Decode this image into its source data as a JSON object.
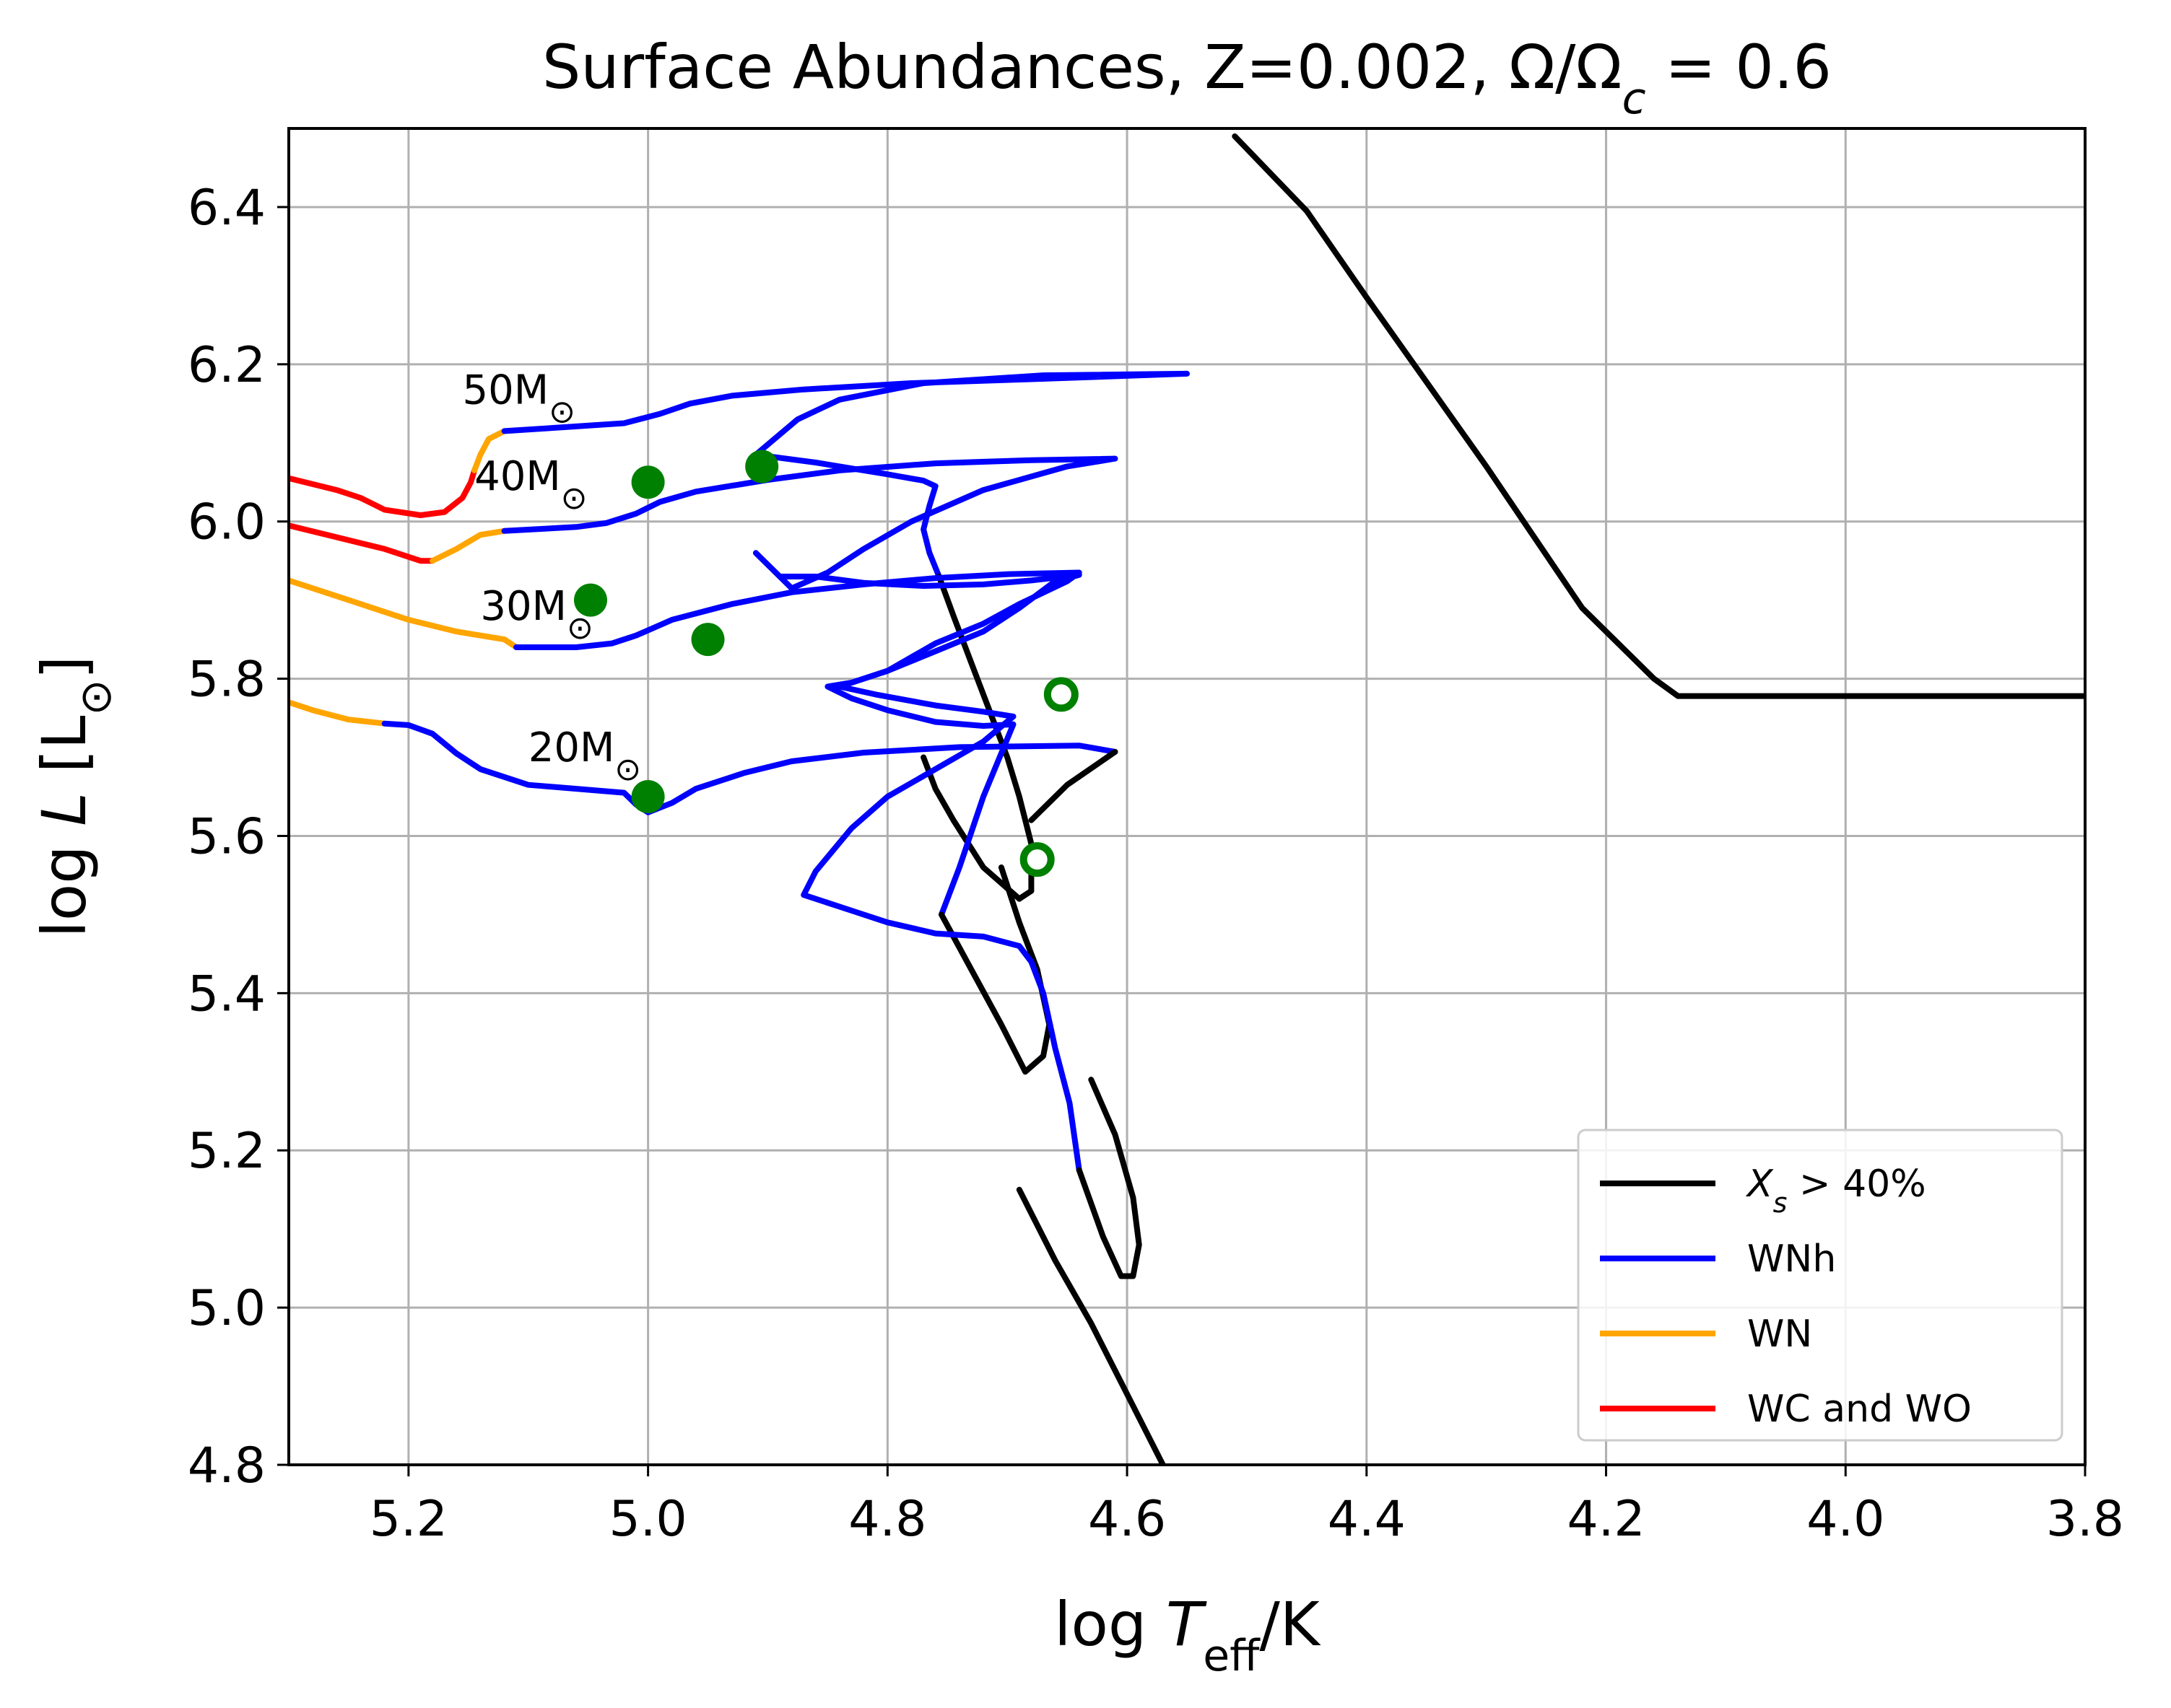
{
  "chart_data": {
    "type": "line",
    "title": "Surface Abundances, Z=0.002, Ω/Ω",
    "title_subscript": "c",
    "title_suffix": " = 0.6",
    "xlabel_prefix": "log ",
    "xlabel_var": "T",
    "xlabel_sub": "eff",
    "xlabel_suffix": "/K",
    "ylabel_prefix": "log ",
    "ylabel_var": "L",
    "ylabel_unit": " [L",
    "ylabel_unit_sym": "⊙",
    "ylabel_close": "]",
    "xlim": [
      5.3,
      3.8
    ],
    "ylim": [
      4.8,
      6.5
    ],
    "x_inverted": true,
    "grid": true,
    "legend_position": "bottom-right",
    "xticks": [
      "5.2",
      "5.0",
      "4.8",
      "4.6",
      "4.4",
      "4.2",
      "4.0",
      "3.8"
    ],
    "yticks": [
      "4.8",
      "5.0",
      "5.2",
      "5.4",
      "5.6",
      "5.8",
      "6.0",
      "6.2",
      "6.4"
    ],
    "colors": {
      "black": "#000000",
      "blue": "#0000ff",
      "orange": "#ffa500",
      "red": "#ff0000",
      "green": "#008000"
    },
    "legend": [
      {
        "label": "X",
        "label_sub": "s",
        "label_suffix": " > 40%",
        "color": "#000000"
      },
      {
        "label": "WNh",
        "color": "#0000ff"
      },
      {
        "label": "WN",
        "color": "#ffa500"
      },
      {
        "label": "WC and WO",
        "color": "#ff0000"
      }
    ],
    "track_labels": [
      {
        "text": "50M",
        "sym": "⊙",
        "x": 5.155,
        "y": 6.15
      },
      {
        "text": "40M",
        "sym": "⊙",
        "x": 5.145,
        "y": 6.04
      },
      {
        "text": "30M",
        "sym": "⊙",
        "x": 5.14,
        "y": 5.875
      },
      {
        "text": "20M",
        "sym": "⊙",
        "x": 5.1,
        "y": 5.695
      }
    ],
    "tracks": [
      {
        "name": "50M",
        "segments": [
          {
            "color": "#ff0000",
            "points": [
              [
                5.3,
                6.055
              ],
              [
                5.26,
                6.04
              ],
              [
                5.24,
                6.03
              ],
              [
                5.22,
                6.015
              ],
              [
                5.19,
                6.008
              ],
              [
                5.17,
                6.012
              ],
              [
                5.155,
                6.03
              ],
              [
                5.148,
                6.05
              ],
              [
                5.145,
                6.065
              ]
            ]
          },
          {
            "color": "#ffa500",
            "points": [
              [
                5.145,
                6.065
              ],
              [
                5.14,
                6.085
              ],
              [
                5.133,
                6.105
              ],
              [
                5.12,
                6.115
              ]
            ]
          },
          {
            "color": "#0000ff",
            "points": [
              [
                5.12,
                6.115
              ],
              [
                5.07,
                6.12
              ],
              [
                5.02,
                6.125
              ],
              [
                4.99,
                6.137
              ],
              [
                4.965,
                6.15
              ],
              [
                4.93,
                6.16
              ],
              [
                4.87,
                6.168
              ],
              [
                4.78,
                6.176
              ],
              [
                4.68,
                6.181
              ],
              [
                4.55,
                6.188
              ],
              [
                4.67,
                6.186
              ],
              [
                4.77,
                6.176
              ],
              [
                4.84,
                6.155
              ],
              [
                4.875,
                6.13
              ],
              [
                4.91,
                6.085
              ],
              [
                4.86,
                6.075
              ],
              [
                4.8,
                6.06
              ],
              [
                4.77,
                6.052
              ],
              [
                4.76,
                6.045
              ],
              [
                4.765,
                6.02
              ],
              [
                4.77,
                5.99
              ],
              [
                4.765,
                5.96
              ],
              [
                4.757,
                5.93
              ]
            ]
          },
          {
            "color": "#000000",
            "points": [
              [
                4.757,
                5.93
              ],
              [
                4.745,
                5.88
              ],
              [
                4.73,
                5.82
              ],
              [
                4.715,
                5.76
              ],
              [
                4.7,
                5.7
              ],
              [
                4.69,
                5.65
              ],
              [
                4.68,
                5.59
              ],
              [
                4.68,
                5.53
              ],
              [
                4.69,
                5.52
              ],
              [
                4.72,
                5.56
              ],
              [
                4.745,
                5.62
              ],
              [
                4.76,
                5.66
              ],
              [
                4.77,
                5.7
              ]
            ]
          }
        ]
      },
      {
        "name": "40M",
        "segments": [
          {
            "color": "#ff0000",
            "points": [
              [
                5.3,
                5.995
              ],
              [
                5.26,
                5.98
              ],
              [
                5.22,
                5.965
              ],
              [
                5.19,
                5.95
              ],
              [
                5.18,
                5.95
              ]
            ]
          },
          {
            "color": "#ffa500",
            "points": [
              [
                5.18,
                5.95
              ],
              [
                5.16,
                5.965
              ],
              [
                5.14,
                5.983
              ],
              [
                5.12,
                5.988
              ]
            ]
          },
          {
            "color": "#0000ff",
            "points": [
              [
                5.12,
                5.988
              ],
              [
                5.06,
                5.993
              ],
              [
                5.035,
                5.998
              ],
              [
                5.01,
                6.01
              ],
              [
                4.99,
                6.025
              ],
              [
                4.96,
                6.038
              ],
              [
                4.9,
                6.053
              ],
              [
                4.84,
                6.065
              ],
              [
                4.76,
                6.074
              ],
              [
                4.68,
                6.078
              ],
              [
                4.61,
                6.08
              ],
              [
                4.65,
                6.07
              ],
              [
                4.72,
                6.04
              ],
              [
                4.78,
                6.0
              ],
              [
                4.82,
                5.965
              ],
              [
                4.85,
                5.935
              ],
              [
                4.88,
                5.915
              ],
              [
                4.91,
                5.96
              ],
              [
                4.89,
                5.93
              ],
              [
                4.86,
                5.93
              ],
              [
                4.82,
                5.922
              ],
              [
                4.77,
                5.918
              ],
              [
                4.72,
                5.92
              ],
              [
                4.68,
                5.925
              ],
              [
                4.64,
                5.932
              ],
              [
                4.66,
                5.924
              ],
              [
                4.69,
                5.89
              ],
              [
                4.72,
                5.86
              ],
              [
                4.76,
                5.835
              ],
              [
                4.8,
                5.81
              ],
              [
                4.83,
                5.795
              ],
              [
                4.85,
                5.79
              ],
              [
                4.83,
                5.775
              ],
              [
                4.8,
                5.76
              ],
              [
                4.76,
                5.745
              ],
              [
                4.72,
                5.74
              ],
              [
                4.695,
                5.742
              ],
              [
                4.72,
                5.65
              ],
              [
                4.74,
                5.56
              ],
              [
                4.755,
                5.5
              ]
            ]
          },
          {
            "color": "#000000",
            "points": [
              [
                4.755,
                5.5
              ],
              [
                4.73,
                5.43
              ],
              [
                4.705,
                5.36
              ],
              [
                4.685,
                5.3
              ],
              [
                4.67,
                5.32
              ],
              [
                4.665,
                5.36
              ],
              [
                4.675,
                5.43
              ],
              [
                4.69,
                5.49
              ],
              [
                4.705,
                5.56
              ]
            ]
          }
        ]
      },
      {
        "name": "30M",
        "segments": [
          {
            "color": "#ffa500",
            "points": [
              [
                5.3,
                5.925
              ],
              [
                5.25,
                5.9
              ],
              [
                5.2,
                5.875
              ],
              [
                5.16,
                5.86
              ],
              [
                5.12,
                5.85
              ],
              [
                5.11,
                5.84
              ]
            ]
          },
          {
            "color": "#0000ff",
            "points": [
              [
                5.11,
                5.84
              ],
              [
                5.06,
                5.84
              ],
              [
                5.03,
                5.845
              ],
              [
                5.01,
                5.855
              ],
              [
                4.98,
                5.875
              ],
              [
                4.93,
                5.895
              ],
              [
                4.88,
                5.91
              ],
              [
                4.82,
                5.92
              ],
              [
                4.76,
                5.928
              ],
              [
                4.7,
                5.933
              ],
              [
                4.64,
                5.935
              ],
              [
                4.65,
                5.924
              ],
              [
                4.69,
                5.895
              ],
              [
                4.72,
                5.87
              ],
              [
                4.76,
                5.845
              ],
              [
                4.8,
                5.81
              ],
              [
                4.84,
                5.79
              ],
              [
                4.81,
                5.78
              ],
              [
                4.76,
                5.766
              ],
              [
                4.72,
                5.758
              ],
              [
                4.695,
                5.752
              ],
              [
                4.72,
                5.72
              ],
              [
                4.76,
                5.685
              ],
              [
                4.8,
                5.65
              ],
              [
                4.83,
                5.61
              ],
              [
                4.86,
                5.555
              ],
              [
                4.87,
                5.525
              ],
              [
                4.83,
                5.505
              ],
              [
                4.8,
                5.49
              ],
              [
                4.76,
                5.476
              ],
              [
                4.72,
                5.472
              ],
              [
                4.69,
                5.46
              ],
              [
                4.68,
                5.44
              ],
              [
                4.67,
                5.4
              ],
              [
                4.66,
                5.33
              ],
              [
                4.648,
                5.26
              ],
              [
                4.64,
                5.175
              ]
            ]
          },
          {
            "color": "#000000",
            "points": [
              [
                4.64,
                5.175
              ],
              [
                4.62,
                5.09
              ],
              [
                4.605,
                5.04
              ],
              [
                4.595,
                5.04
              ],
              [
                4.59,
                5.08
              ],
              [
                4.595,
                5.14
              ],
              [
                4.61,
                5.22
              ],
              [
                4.63,
                5.29
              ]
            ]
          }
        ]
      },
      {
        "name": "20M",
        "segments": [
          {
            "color": "#ffa500",
            "points": [
              [
                5.3,
                5.77
              ],
              [
                5.28,
                5.76
              ],
              [
                5.25,
                5.748
              ],
              [
                5.22,
                5.743
              ]
            ]
          },
          {
            "color": "#0000ff",
            "points": [
              [
                5.22,
                5.743
              ],
              [
                5.2,
                5.741
              ],
              [
                5.18,
                5.73
              ],
              [
                5.16,
                5.705
              ],
              [
                5.14,
                5.685
              ],
              [
                5.1,
                5.665
              ],
              [
                5.06,
                5.66
              ],
              [
                5.02,
                5.655
              ],
              [
                5.01,
                5.64
              ],
              [
                5.0,
                5.63
              ],
              [
                4.98,
                5.642
              ],
              [
                4.96,
                5.66
              ],
              [
                4.92,
                5.68
              ],
              [
                4.88,
                5.695
              ],
              [
                4.82,
                5.706
              ],
              [
                4.74,
                5.713
              ],
              [
                4.64,
                5.715
              ],
              [
                4.61,
                5.707
              ]
            ]
          },
          {
            "color": "#000000",
            "points": [
              [
                4.61,
                5.707
              ],
              [
                4.65,
                5.665
              ],
              [
                4.68,
                5.62
              ]
            ]
          }
        ]
      },
      {
        "name": "Xs",
        "segments": [
          {
            "color": "#000000",
            "points": [
              [
                4.69,
                5.15
              ],
              [
                4.66,
                5.06
              ],
              [
                4.63,
                4.98
              ],
              [
                4.6,
                4.89
              ],
              [
                4.57,
                4.8
              ]
            ]
          },
          {
            "color": "#000000",
            "points": [
              [
                4.51,
                6.49
              ],
              [
                4.45,
                6.395
              ],
              [
                4.4,
                6.285
              ],
              [
                4.3,
                6.07
              ],
              [
                4.22,
                5.89
              ],
              [
                4.16,
                5.8
              ],
              [
                4.14,
                5.778
              ],
              [
                4.1,
                5.778
              ],
              [
                3.95,
                5.778
              ],
              [
                3.8,
                5.778
              ]
            ]
          }
        ]
      }
    ],
    "markers": [
      {
        "x": 5.0,
        "y": 6.05,
        "filled": true,
        "color": "#008000"
      },
      {
        "x": 4.905,
        "y": 6.07,
        "filled": true,
        "color": "#008000"
      },
      {
        "x": 5.048,
        "y": 5.9,
        "filled": true,
        "color": "#008000"
      },
      {
        "x": 4.95,
        "y": 5.85,
        "filled": true,
        "color": "#008000"
      },
      {
        "x": 5.0,
        "y": 5.65,
        "filled": true,
        "color": "#008000"
      },
      {
        "x": 4.655,
        "y": 5.78,
        "filled": false,
        "color": "#008000"
      },
      {
        "x": 4.675,
        "y": 5.57,
        "filled": false,
        "color": "#008000"
      }
    ]
  }
}
